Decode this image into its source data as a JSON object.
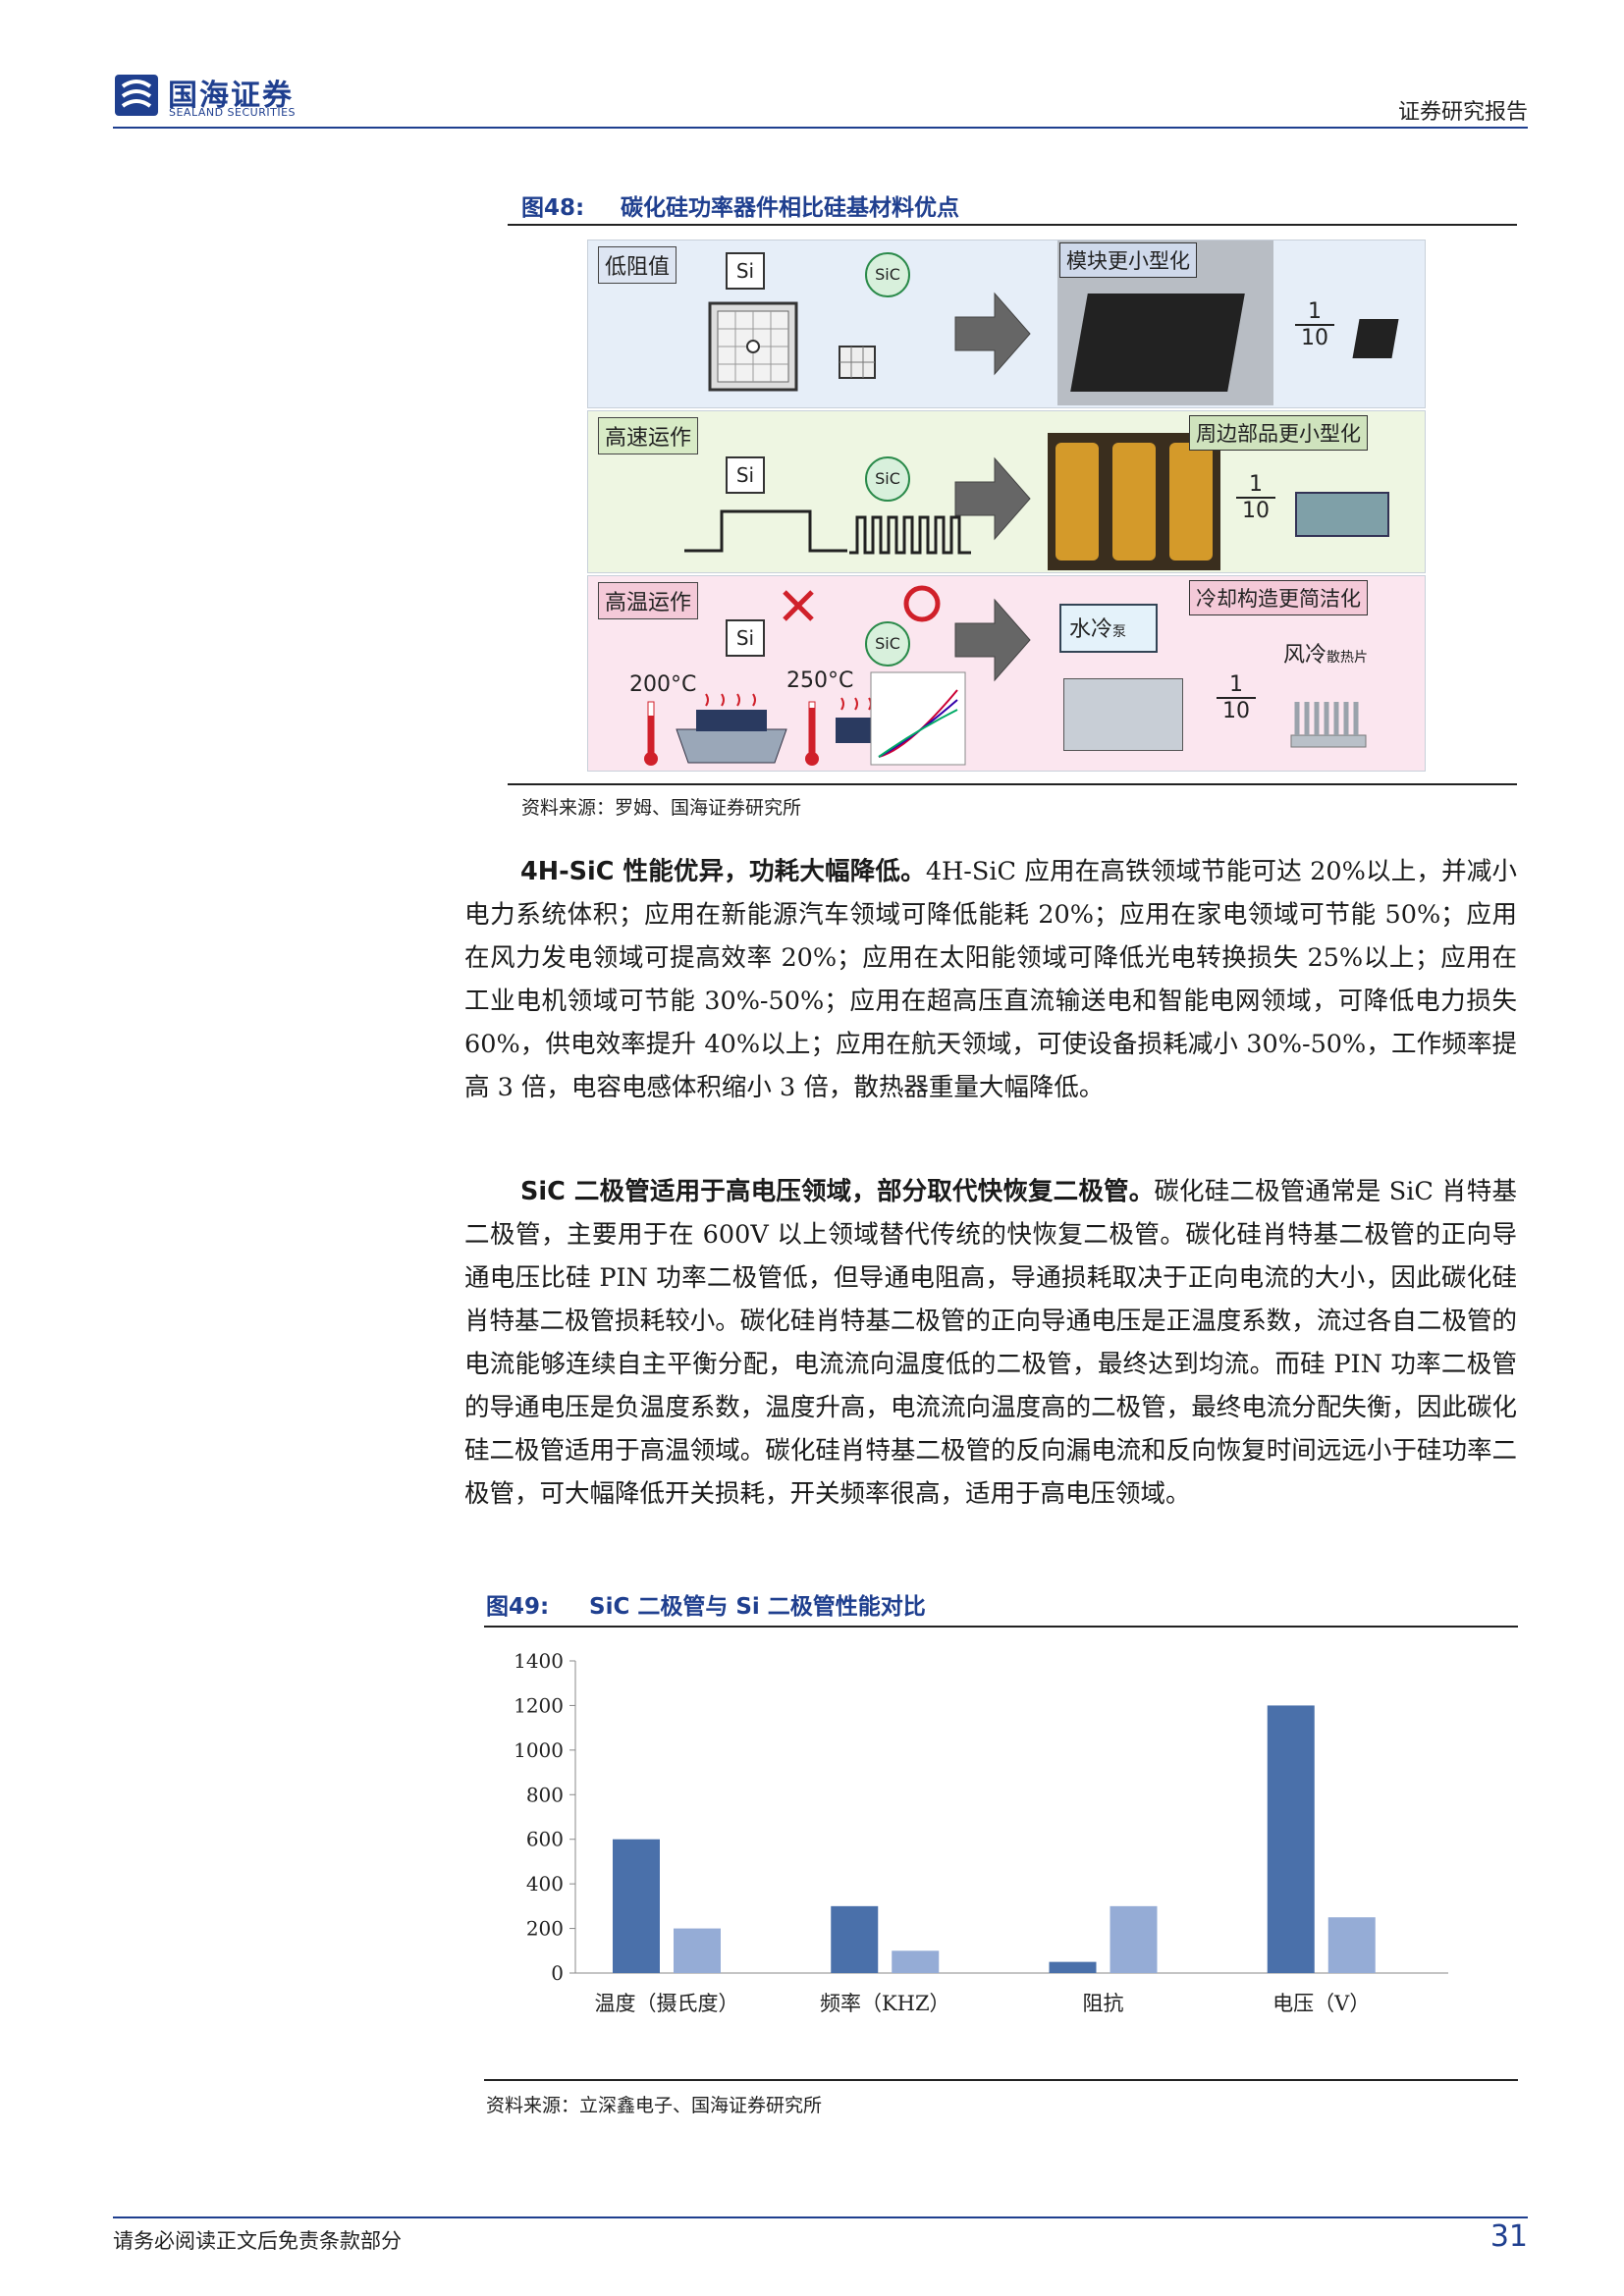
{
  "header": {
    "brand_cn": "国海证券",
    "brand_en": "SEALAND SECURITIES",
    "report_type": "证券研究报告"
  },
  "figure48": {
    "number": "图48:",
    "title": "碳化硅功率器件相比硅基材料优点",
    "rows": [
      {
        "label": "低阻值",
        "result": "模块更小型化",
        "ratio_top": "1",
        "ratio_bottom": "10"
      },
      {
        "label": "高速运作",
        "result": "周边部品更小型化",
        "ratio_top": "1",
        "ratio_bottom": "10"
      },
      {
        "label": "高温运作",
        "result": "冷却构造更简洁化",
        "ratio_top": "1",
        "ratio_bottom": "10"
      }
    ],
    "si": "Si",
    "sic": "SiC",
    "temp_si": "200°C",
    "temp_sic": "250°C",
    "water_cool": "水冷",
    "pump": "泵",
    "air_cool": "风冷",
    "heatsink": "散热片",
    "source": "资料来源：罗姆、国海证券研究所"
  },
  "paragraph1": {
    "lead": "4H-SiC 性能优异，功耗大幅降低。",
    "body": "4H-SiC 应用在高铁领域节能可达 20%以上，并减小电力系统体积；应用在新能源汽车领域可降低能耗 20%；应用在家电领域可节能 50%；应用在风力发电领域可提高效率 20%；应用在太阳能领域可降低光电转换损失 25%以上；应用在工业电机领域可节能 30%-50%；应用在超高压直流输送电和智能电网领域，可降低电力损失 60%，供电效率提升 40%以上；应用在航天领域，可使设备损耗减小 30%-50%，工作频率提高 3 倍，电容电感体积缩小 3 倍，散热器重量大幅降低。"
  },
  "paragraph2": {
    "lead": "SiC 二极管适用于高电压领域，部分取代快恢复二极管。",
    "body": "碳化硅二极管通常是 SiC 肖特基二极管，主要用于在 600V 以上领域替代传统的快恢复二极管。碳化硅肖特基二极管的正向导通电压比硅 PIN 功率二极管低，但导通电阻高，导通损耗取决于正向电流的大小，因此碳化硅肖特基二极管损耗较小。碳化硅肖特基二极管的正向导通电压是正温度系数，流过各自二极管的电流能够连续自主平衡分配，电流流向温度低的二极管，最终达到均流。而硅 PIN 功率二极管的导通电压是负温度系数，温度升高，电流流向温度高的二极管，最终电流分配失衡，因此碳化硅二极管适用于高温领域。碳化硅肖特基二极管的反向漏电流和反向恢复时间远远小于硅功率二极管，可大幅降低开关损耗，开关频率很高，适用于高电压领域。"
  },
  "figure49": {
    "number": "图49:",
    "title": "SiC 二极管与 Si 二极管性能对比",
    "source": "资料来源：立深鑫电子、国海证券研究所"
  },
  "chart_data": {
    "type": "bar",
    "categories": [
      "温度（摄氏度）",
      "频率（KHZ）",
      "阻抗",
      "电压（V）"
    ],
    "series": [
      {
        "values": [
          600,
          300,
          50,
          1200
        ],
        "color": "#4a70aa"
      },
      {
        "values": [
          200,
          100,
          300,
          250
        ],
        "color": "#95acd6"
      }
    ],
    "ylim": [
      0,
      1400
    ],
    "yticks": [
      "0",
      "200",
      "400",
      "600",
      "800",
      "1000",
      "1200",
      "1400"
    ],
    "grid": false,
    "title": "",
    "xlabel": "",
    "ylabel": ""
  },
  "footer": {
    "disclaimer": "请务必阅读正文后免责条款部分",
    "page": "31"
  }
}
